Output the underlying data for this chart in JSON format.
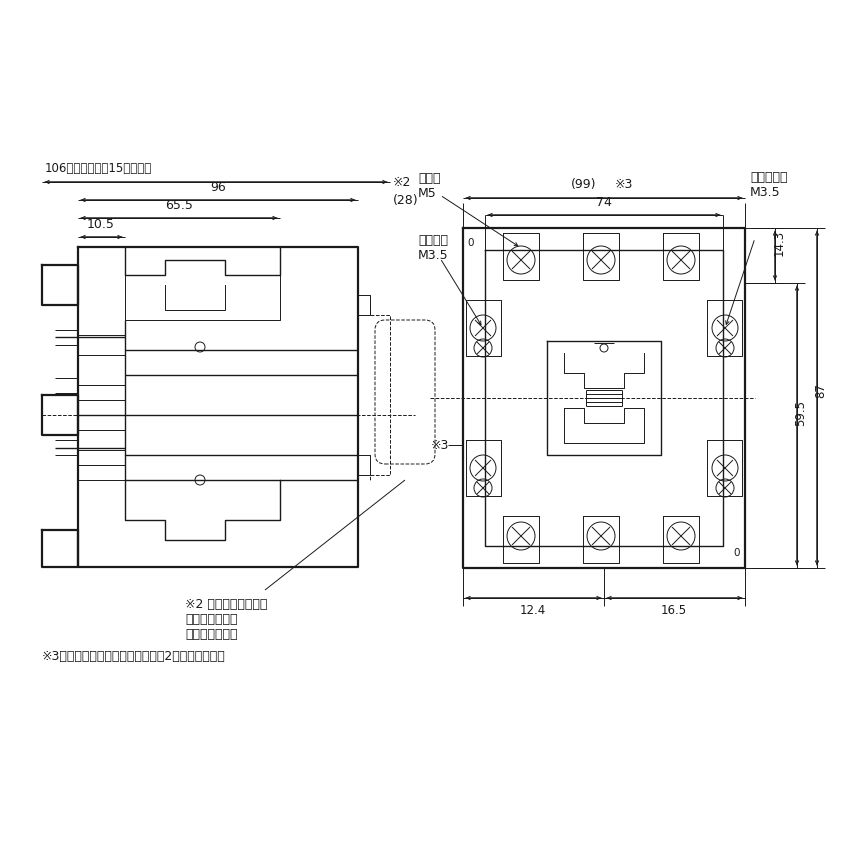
{
  "bg_color": "#ffffff",
  "line_color": "#1a1a1a",
  "text_color": "#1a1a1a",
  "fig_width": 8.41,
  "fig_height": 8.41,
  "dpi": 100,
  "annotations": {
    "dim_106": "106（レール高き15の場合）",
    "dim_96": "96",
    "dim_655": "65.5",
    "dim_105": "10.5",
    "dim_28": "(28)",
    "note2_label": "※2",
    "dim_99": "(99)",
    "note3_label": "※3",
    "dim_74": "74",
    "dim_143": "14.3",
    "dim_595": "59.5",
    "dim_87": "87",
    "dim_165": "16.5",
    "dim_124": "12.4",
    "label_main_terminal": "主端子\nM5",
    "label_coil_terminal": "コイル端子\nM3.5",
    "label_aux_terminal": "補助端子\nM3.5",
    "note2_text_line1": "※2 補助接点ユニット",
    "note2_text_line2": "（ヘッドオン）",
    "note2_text_line3": "を取付けた場合",
    "note3_text": "※3　サイドオン補助接点ユニット2個取付けた場合"
  }
}
